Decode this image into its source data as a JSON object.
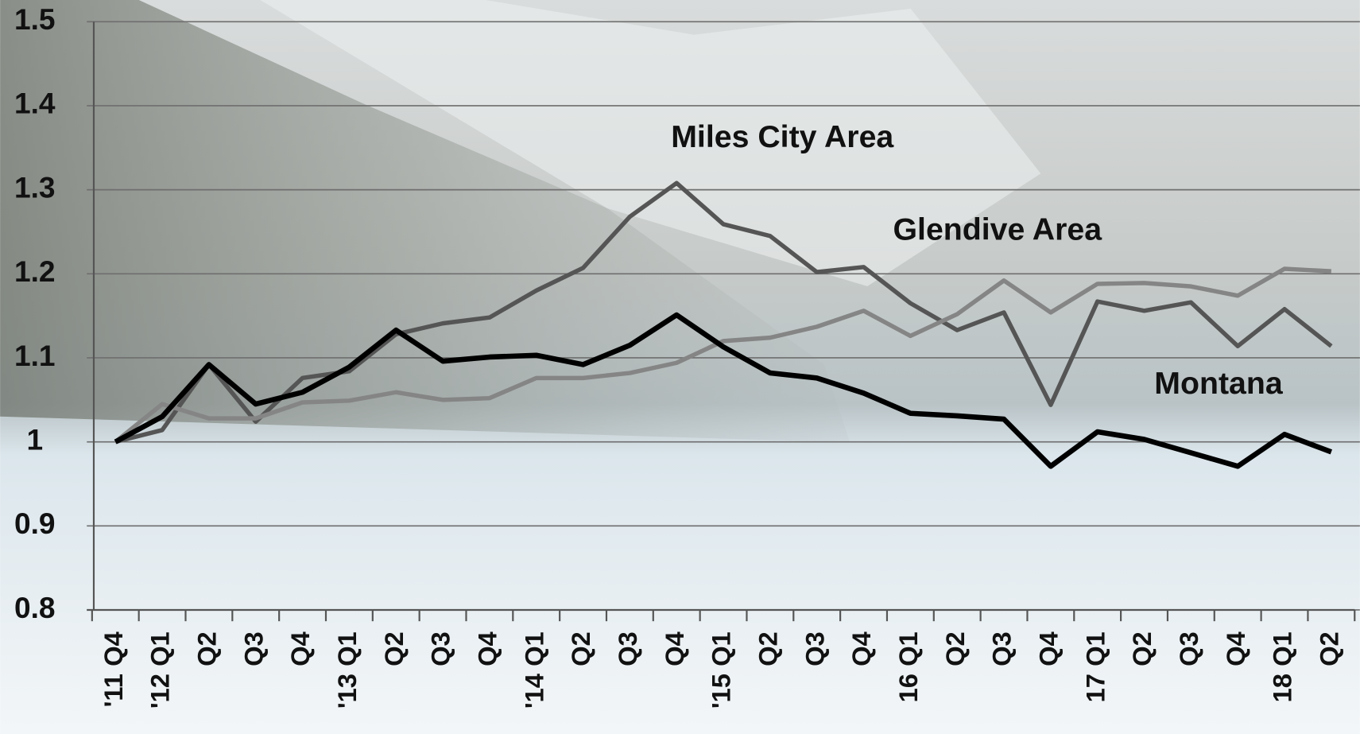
{
  "chart_data": {
    "type": "line",
    "categories": [
      "'11 Q4",
      "'12 Q1",
      "Q2",
      "Q3",
      "Q4",
      "'13 Q1",
      "Q2",
      "Q3",
      "Q4",
      "'14 Q1",
      "Q2",
      "Q3",
      "Q4",
      "'15 Q1",
      "Q2",
      "Q3",
      "Q4",
      "16 Q1",
      "Q2",
      "Q3",
      "Q4",
      "17 Q1",
      "Q2",
      "Q3",
      "Q4",
      "18 Q1",
      "Q2"
    ],
    "series": [
      {
        "name": "Miles City Area",
        "color": "#555555",
        "values": [
          1.0,
          1.014,
          1.092,
          1.024,
          1.076,
          1.084,
          1.128,
          1.141,
          1.148,
          1.18,
          1.207,
          1.268,
          1.308,
          1.259,
          1.245,
          1.202,
          1.208,
          1.165,
          1.133,
          1.154,
          1.044,
          1.167,
          1.156,
          1.166,
          1.114,
          1.158,
          1.114
        ]
      },
      {
        "name": "Glendive Area",
        "color": "#858585",
        "values": [
          1.0,
          1.045,
          1.028,
          1.028,
          1.047,
          1.049,
          1.059,
          1.05,
          1.052,
          1.076,
          1.076,
          1.082,
          1.094,
          1.12,
          1.124,
          1.137,
          1.156,
          1.126,
          1.152,
          1.192,
          1.154,
          1.188,
          1.189,
          1.185,
          1.174,
          1.206,
          1.203
        ]
      },
      {
        "name": "Montana",
        "color": "#000000",
        "values": [
          1.0,
          1.03,
          1.092,
          1.045,
          1.059,
          1.089,
          1.133,
          1.096,
          1.101,
          1.103,
          1.092,
          1.115,
          1.151,
          1.113,
          1.082,
          1.076,
          1.058,
          1.034,
          1.031,
          1.027,
          0.971,
          1.012,
          1.003,
          0.987,
          0.971,
          1.009,
          0.988
        ]
      }
    ],
    "ylim": [
      0.8,
      1.5
    ],
    "yticks": [
      0.8,
      0.9,
      1,
      1.1,
      1.2,
      1.3,
      1.4,
      1.5
    ],
    "grid": true
  }
}
